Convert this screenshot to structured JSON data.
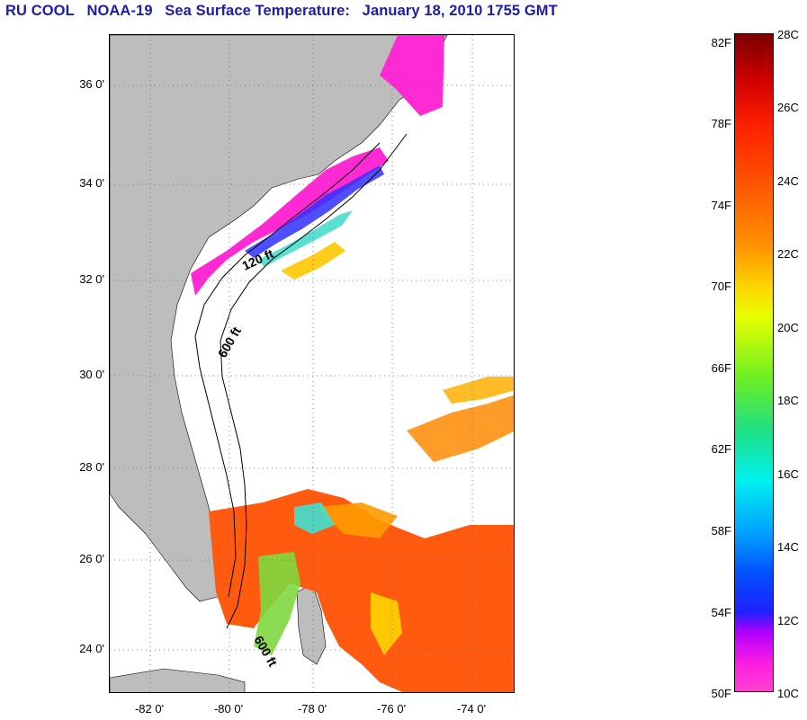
{
  "title": {
    "parts": [
      "RU COOL",
      "NOAA-19",
      "Sea Surface Temperature:",
      "January 18, 2010 1755 GMT"
    ]
  },
  "map": {
    "lat_ticks": [
      "36 0'",
      "34 0'",
      "32 0'",
      "30 0'",
      "28 0'",
      "26 0'",
      "24 0'"
    ],
    "lon_ticks": [
      "-82 0'",
      "-80 0'",
      "-78 0'",
      "-76 0'",
      "-74 0'"
    ],
    "isobath_labels": [
      "120 ft",
      "600 ft",
      "600 ft"
    ]
  },
  "colorbar": {
    "f_labels": [
      "82F",
      "78F",
      "74F",
      "70F",
      "66F",
      "62F",
      "58F",
      "54F",
      "50F"
    ],
    "c_labels": [
      "28C",
      "26C",
      "24C",
      "22C",
      "20C",
      "18C",
      "16C",
      "14C",
      "12C",
      "10C"
    ]
  }
}
